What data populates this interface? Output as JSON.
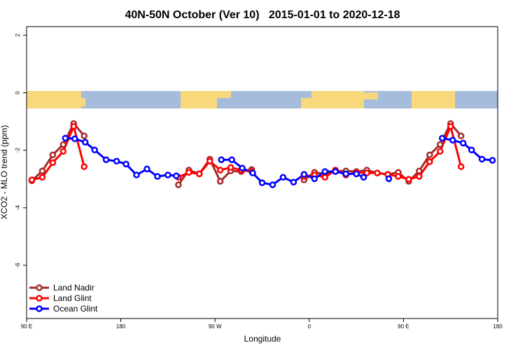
{
  "chart_data": {
    "type": "line",
    "title": "40N-50N October (Ver 10)   2015-01-01 to 2020-12-18",
    "x_label": "Longitude",
    "y_label": "XCO2 - MLO trend (ppm)",
    "xlim": [
      90,
      540
    ],
    "ylim": [
      -7.85,
      2.3
    ],
    "xticks": [
      {
        "value": 90,
        "label": "90 E"
      },
      180,
      {
        "value": 270,
        "label": "90 W"
      },
      {
        "value": 360,
        "label": "0"
      },
      {
        "value": 450,
        "label": "90 E"
      },
      {
        "value": 540,
        "label": "180"
      }
    ],
    "yticks": [
      2,
      0,
      -2,
      -4,
      -6
    ],
    "legend": "bottomleft",
    "series": [
      {
        "name": "Land Nadir",
        "color": "#a52a2a",
        "x": [
          95,
          105,
          115,
          125,
          135,
          145,
          190,
          235,
          245,
          255,
          265,
          275,
          285,
          295,
          305,
          330,
          355,
          365,
          375,
          385,
          395,
          405,
          415,
          425,
          435,
          445,
          455,
          465,
          475,
          485,
          495,
          505
        ],
        "values": [
          -3.06,
          -2.72,
          -2.16,
          -1.8,
          -1.07,
          -1.5,
          null,
          -3.2,
          -2.69,
          -2.82,
          -2.31,
          -3.08,
          -2.72,
          -2.74,
          -2.67,
          null,
          -3.03,
          -2.77,
          -2.82,
          -2.72,
          -2.72,
          -2.74,
          -2.69,
          -2.79,
          -2.84,
          -2.77,
          -3.08,
          -2.72,
          -2.16,
          -1.8,
          -1.07,
          -1.5
        ]
      },
      {
        "name": "Land Glint",
        "color": "#ff0000",
        "x": [
          95,
          105,
          115,
          125,
          135,
          145,
          190,
          235,
          245,
          255,
          265,
          275,
          285,
          295,
          305,
          330,
          355,
          365,
          375,
          385,
          395,
          405,
          415,
          425,
          435,
          445,
          455,
          465,
          475,
          485,
          495,
          505
        ],
        "values": [
          -3.03,
          -2.94,
          -2.43,
          -2.04,
          -1.17,
          -2.57,
          null,
          -2.94,
          -2.77,
          -2.82,
          -2.38,
          -2.69,
          -2.6,
          -2.69,
          -2.74,
          null,
          -2.91,
          -2.86,
          -2.94,
          -2.69,
          -2.86,
          -2.77,
          -2.79,
          -2.79,
          -2.84,
          -2.91,
          -3.01,
          -2.91,
          -2.4,
          -2.04,
          -1.17,
          -2.57
        ]
      },
      {
        "name": "Ocean Glint",
        "color": "#0000ff",
        "x": [
          127,
          136,
          146,
          155,
          166,
          176,
          185,
          195,
          205,
          215,
          225,
          233,
          255,
          276,
          286,
          296,
          306,
          315,
          325,
          335,
          345,
          355,
          365,
          375,
          385,
          395,
          405,
          412,
          424,
          436,
          460,
          487,
          497,
          507,
          515,
          525,
          535
        ],
        "values": [
          -1.58,
          -1.6,
          -1.72,
          -1.99,
          -2.33,
          -2.38,
          -2.48,
          -2.86,
          -2.65,
          -2.91,
          -2.86,
          -2.89,
          null,
          -2.33,
          -2.33,
          -2.62,
          -2.79,
          -3.13,
          -3.2,
          -2.94,
          -3.11,
          -2.84,
          -2.99,
          -2.74,
          -2.74,
          -2.82,
          -2.82,
          -2.94,
          null,
          -2.99,
          null,
          -1.58,
          -1.65,
          -1.75,
          -1.99,
          -2.31,
          -2.35
        ]
      }
    ]
  }
}
